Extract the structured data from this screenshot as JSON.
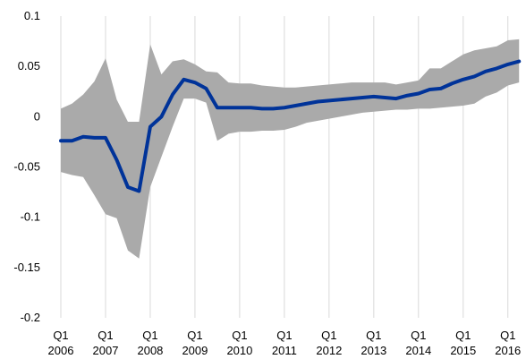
{
  "chart_data": {
    "type": "line",
    "title": "",
    "xlabel": "",
    "ylabel": "",
    "ylim": [
      -0.2,
      0.1
    ],
    "yticks": [
      0.1,
      0.05,
      0,
      -0.05,
      -0.1,
      -0.15,
      -0.2
    ],
    "ytick_labels": [
      "0.1",
      "0.05",
      "0",
      "-0.05",
      "-0.1",
      "-0.15",
      "-0.2"
    ],
    "grid": "vertical",
    "xticks": [
      {
        "x": 0,
        "q": "Q1",
        "year": "2006"
      },
      {
        "x": 4,
        "q": "Q1",
        "year": "2007"
      },
      {
        "x": 8,
        "q": "Q1",
        "year": "2008"
      },
      {
        "x": 12,
        "q": "Q1",
        "year": "2009"
      },
      {
        "x": 16,
        "q": "Q1",
        "year": "2010"
      },
      {
        "x": 20,
        "q": "Q1",
        "year": "2011"
      },
      {
        "x": 24,
        "q": "Q1",
        "year": "2012"
      },
      {
        "x": 28,
        "q": "Q1",
        "year": "2013"
      },
      {
        "x": 32,
        "q": "Q1",
        "year": "2014"
      },
      {
        "x": 36,
        "q": "Q1",
        "year": "2015"
      },
      {
        "x": 40,
        "q": "Q1",
        "year": "2016"
      }
    ],
    "xlim": [
      -0.8,
      41.3
    ],
    "periods": [
      "2006Q1",
      "2006Q2",
      "2006Q3",
      "2006Q4",
      "2007Q1",
      "2007Q2",
      "2007Q3",
      "2007Q4",
      "2008Q1",
      "2008Q2",
      "2008Q3",
      "2008Q4",
      "2009Q1",
      "2009Q2",
      "2009Q3",
      "2009Q4",
      "2010Q1",
      "2010Q2",
      "2010Q3",
      "2010Q4",
      "2011Q1",
      "2011Q2",
      "2011Q3",
      "2011Q4",
      "2012Q1",
      "2012Q2",
      "2012Q3",
      "2012Q4",
      "2013Q1",
      "2013Q2",
      "2013Q3",
      "2013Q4",
      "2014Q1",
      "2014Q2",
      "2014Q3",
      "2014Q4",
      "2015Q1",
      "2015Q2",
      "2015Q3",
      "2015Q4",
      "2016Q1",
      "2016Q2"
    ],
    "series": [
      {
        "role": "estimate",
        "color": "#003399",
        "values": [
          -0.024,
          -0.024,
          -0.02,
          -0.021,
          -0.021,
          -0.043,
          -0.07,
          -0.074,
          -0.01,
          0.0,
          0.022,
          0.037,
          0.034,
          0.028,
          0.009,
          0.009,
          0.009,
          0.009,
          0.008,
          0.008,
          0.009,
          0.011,
          0.013,
          0.015,
          0.016,
          0.017,
          0.018,
          0.019,
          0.02,
          0.019,
          0.018,
          0.021,
          0.023,
          0.027,
          0.028,
          0.033,
          0.037,
          0.04,
          0.045,
          0.048,
          0.052,
          0.055
        ]
      },
      {
        "role": "range-upper",
        "color": "#aaaaaa",
        "values": [
          0.008,
          0.013,
          0.022,
          0.035,
          0.058,
          0.017,
          -0.005,
          -0.005,
          0.072,
          0.042,
          0.055,
          0.057,
          0.052,
          0.045,
          0.044,
          0.034,
          0.033,
          0.033,
          0.031,
          0.03,
          0.029,
          0.029,
          0.03,
          0.031,
          0.032,
          0.033,
          0.034,
          0.034,
          0.034,
          0.034,
          0.032,
          0.034,
          0.036,
          0.048,
          0.048,
          0.055,
          0.062,
          0.066,
          0.068,
          0.07,
          0.076,
          0.077
        ]
      },
      {
        "role": "range-lower",
        "color": "#aaaaaa",
        "values": [
          -0.055,
          -0.058,
          -0.06,
          -0.078,
          -0.097,
          -0.101,
          -0.133,
          -0.141,
          -0.07,
          -0.04,
          -0.01,
          0.018,
          0.018,
          0.014,
          -0.024,
          -0.017,
          -0.015,
          -0.015,
          -0.014,
          -0.014,
          -0.013,
          -0.01,
          -0.006,
          -0.004,
          -0.002,
          0.0,
          0.002,
          0.004,
          0.005,
          0.006,
          0.007,
          0.007,
          0.008,
          0.008,
          0.009,
          0.01,
          0.011,
          0.013,
          0.02,
          0.024,
          0.031,
          0.034
        ]
      }
    ]
  }
}
